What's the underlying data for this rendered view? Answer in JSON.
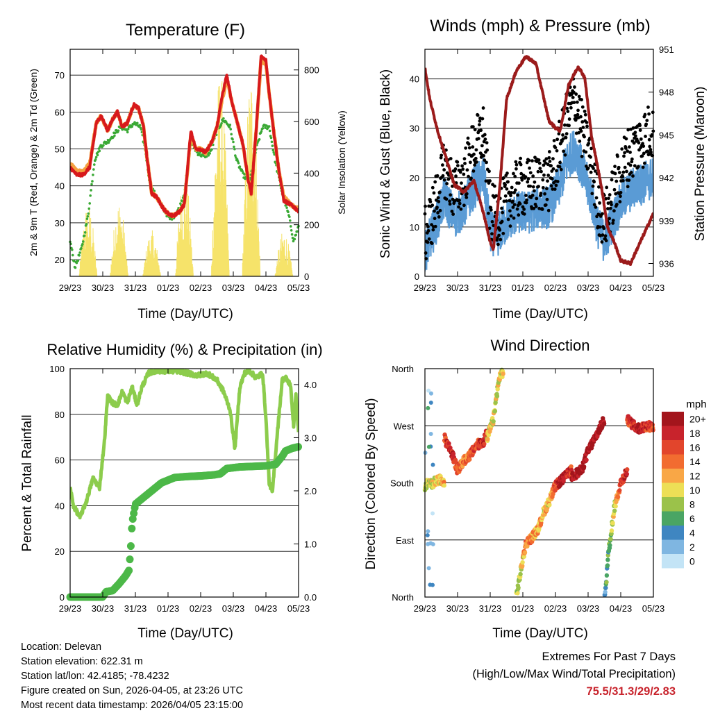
{
  "colors": {
    "temp_2m": "#d7191c",
    "temp_9m": "#f4a040",
    "dewpoint": "#3aa935",
    "solar": "#f6e36a",
    "wind": "#5a9bd5",
    "gust": "#000000",
    "pressure": "#9b1b1b",
    "rh": "#8ccc4c",
    "precip": "#4cb848",
    "extremes": "#c8232c"
  },
  "x_tick_labels": [
    "29/23",
    "30/23",
    "31/23",
    "01/23",
    "02/23",
    "03/23",
    "04/23",
    "05/23"
  ],
  "chart_data": [
    {
      "id": "temperature",
      "type": "line",
      "title": "Temperature (F)",
      "xlabel": "Time (Day/UTC)",
      "ylabel_left": "2m & 9m T (Red, Orange) & 2m Td (Green)",
      "ylabel_right": "Solar Insolation (Yellow)",
      "ylim_left": [
        15.5,
        77
      ],
      "yticks_left": [
        20,
        30,
        40,
        50,
        60,
        70
      ],
      "ylim_right": [
        0,
        880
      ],
      "yticks_right": [
        0,
        200,
        400,
        600,
        800
      ],
      "x_days": [
        0,
        7
      ],
      "series": [
        {
          "name": "2m T",
          "axis": "left",
          "x": [
            0,
            0.2,
            0.4,
            0.6,
            0.8,
            0.95,
            1.15,
            1.3,
            1.45,
            1.6,
            1.75,
            1.95,
            2.1,
            2.25,
            2.35,
            2.5,
            2.65,
            2.85,
            3.05,
            3.2,
            3.35,
            3.5,
            3.7,
            3.85,
            4.0,
            4.15,
            4.35,
            4.5,
            4.65,
            4.8,
            4.95,
            5.1,
            5.3,
            5.45,
            5.55,
            5.7,
            5.85,
            6.0,
            6.1,
            6.25,
            6.4,
            6.55,
            6.75,
            6.9,
            7.0
          ],
          "y": [
            45,
            43,
            43,
            45,
            57,
            59,
            55,
            58,
            60,
            56,
            57,
            62,
            61,
            56,
            48,
            38,
            37,
            34,
            32,
            32,
            33,
            35,
            55,
            50,
            50,
            49,
            52,
            56,
            64,
            70,
            63,
            58,
            51,
            42,
            38,
            55,
            75,
            74,
            65,
            54,
            44,
            36,
            35,
            34,
            33
          ]
        },
        {
          "name": "9m T",
          "axis": "left",
          "x": [
            0,
            0.2,
            0.4,
            0.6,
            0.8,
            0.95,
            1.15,
            1.3,
            1.45,
            1.6,
            1.75,
            1.95,
            2.1,
            2.25,
            2.35,
            2.5,
            2.65,
            2.85,
            3.05,
            3.2,
            3.35,
            3.5,
            3.7,
            3.85,
            4.0,
            4.15,
            4.35,
            4.5,
            4.65,
            4.8,
            4.95,
            5.1,
            5.3,
            5.45,
            5.55,
            5.7,
            5.85,
            6.0,
            6.1,
            6.25,
            6.4,
            6.55,
            6.75,
            6.9,
            7.0
          ],
          "y": [
            46,
            44,
            44,
            46,
            57,
            59,
            55,
            58,
            60,
            56,
            57,
            62,
            61,
            56,
            48,
            38,
            37,
            34,
            32,
            32,
            33,
            35,
            54,
            50,
            50,
            49,
            52,
            56,
            63,
            69,
            63,
            58,
            51,
            42,
            38,
            55,
            74,
            73,
            65,
            54,
            44,
            37,
            35,
            34,
            34
          ]
        },
        {
          "name": "2m Td",
          "axis": "left",
          "x": [
            0,
            0.15,
            0.35,
            0.55,
            0.75,
            0.95,
            1.15,
            1.35,
            1.55,
            1.75,
            1.95,
            2.15,
            2.3,
            2.45,
            2.65,
            2.85,
            3.05,
            3.2,
            3.35,
            3.5,
            3.7,
            3.9,
            4.1,
            4.3,
            4.5,
            4.7,
            4.9,
            5.1,
            5.3,
            5.5,
            5.7,
            5.9,
            6.1,
            6.3,
            6.5,
            6.7,
            6.85,
            7.0
          ],
          "y": [
            25,
            18,
            23,
            32,
            47,
            51,
            52,
            54,
            56,
            55,
            57,
            56,
            50,
            40,
            37,
            34,
            31,
            32,
            34,
            38,
            52,
            49,
            48,
            49,
            55,
            58,
            56,
            47,
            43,
            41,
            50,
            56,
            56,
            46,
            38,
            32,
            25,
            29
          ]
        },
        {
          "name": "Solar Insolation",
          "axis": "right",
          "type": "spiky",
          "day_peaks": [
            {
              "center": 0.55,
              "peak": 290
            },
            {
              "center": 1.5,
              "peak": 300
            },
            {
              "center": 2.5,
              "peak": 180
            },
            {
              "center": 3.5,
              "peak": 420
            },
            {
              "center": 4.6,
              "peak": 810
            },
            {
              "center": 5.55,
              "peak": 820
            },
            {
              "center": 6.55,
              "peak": 180
            }
          ]
        }
      ]
    },
    {
      "id": "winds",
      "type": "scatter",
      "title": "Winds (mph) & Pressure (mb)",
      "xlabel": "Time (Day/UTC)",
      "ylabel_left": "Sonic Wind & Gust (Blue, Black)",
      "ylabel_right": "Station Pressure (Maroon)",
      "ylim_left": [
        0,
        46
      ],
      "yticks_left": [
        0,
        10,
        20,
        30,
        40
      ],
      "ylim_right": [
        935.1,
        951.0
      ],
      "yticks_right": [
        936,
        939,
        942,
        945,
        948,
        951
      ],
      "series": [
        {
          "name": "Sonic Wind",
          "axis": "left",
          "x": [
            0,
            0.3,
            0.6,
            0.9,
            1.2,
            1.5,
            1.8,
            2.0,
            2.2,
            2.4,
            2.6,
            2.9,
            3.2,
            3.5,
            3.8,
            4.1,
            4.4,
            4.6,
            4.8,
            5.1,
            5.3,
            5.5,
            5.8,
            6.1,
            6.4,
            6.7,
            7.0
          ],
          "y": [
            5,
            10,
            16,
            12,
            14,
            18,
            20,
            9,
            8,
            10,
            12,
            13,
            13,
            14,
            14,
            18,
            24,
            26,
            22,
            16,
            10,
            7,
            12,
            16,
            18,
            19,
            20
          ]
        },
        {
          "name": "Gust",
          "axis": "left",
          "x": [
            0,
            0.3,
            0.6,
            0.9,
            1.2,
            1.5,
            1.8,
            2.0,
            2.2,
            2.4,
            2.6,
            2.9,
            3.2,
            3.5,
            3.8,
            4.1,
            4.4,
            4.6,
            4.8,
            5.1,
            5.3,
            5.5,
            5.8,
            6.1,
            6.4,
            6.7,
            7.0
          ],
          "y": [
            8,
            14,
            22,
            17,
            20,
            26,
            29,
            13,
            12,
            14,
            16,
            18,
            18,
            19,
            19,
            25,
            33,
            36,
            30,
            23,
            15,
            11,
            17,
            23,
            26,
            28,
            30
          ]
        },
        {
          "name": "Station Pressure",
          "axis": "right",
          "x": [
            0,
            0.15,
            0.4,
            0.7,
            0.9,
            1.2,
            1.5,
            1.8,
            2.0,
            2.1,
            2.3,
            2.5,
            2.8,
            3.1,
            3.4,
            3.6,
            3.8,
            4.0,
            4.15,
            4.4,
            4.7,
            4.9,
            5.1,
            5.4,
            5.6,
            5.8,
            6.0,
            6.3,
            6.5,
            6.7,
            6.9,
            7.0
          ],
          "y": [
            949.7,
            947.5,
            945.2,
            943.0,
            941.5,
            941.0,
            941.8,
            939.5,
            937.5,
            937.0,
            941.5,
            947.5,
            949.5,
            950.5,
            950.0,
            948.0,
            946.0,
            945.5,
            945.3,
            948.5,
            949.8,
            949.0,
            945.0,
            941.5,
            938.5,
            937.5,
            936.2,
            936.0,
            937.0,
            938.0,
            939.0,
            939.5
          ]
        }
      ]
    },
    {
      "id": "humidity",
      "type": "line",
      "title": "Relative Humidity (%) & Precipitation (in)",
      "xlabel": "Time (Day/UTC)",
      "ylabel_left": "Percent & Total Rainfall",
      "ylim_left": [
        0,
        100
      ],
      "yticks_left": [
        0,
        20,
        40,
        60,
        80,
        100
      ],
      "ylim_right": [
        0.0,
        4.3
      ],
      "yticks_right": [
        "0.0",
        "1.0",
        "2.0",
        "3.0",
        "4.0"
      ],
      "series": [
        {
          "name": "Relative Humidity",
          "axis": "left",
          "x": [
            0,
            0.1,
            0.3,
            0.5,
            0.7,
            0.9,
            1.05,
            1.15,
            1.3,
            1.45,
            1.6,
            1.75,
            1.9,
            2.05,
            2.2,
            2.4,
            2.6,
            2.8,
            3.0,
            3.3,
            3.6,
            3.9,
            4.2,
            4.5,
            4.7,
            4.9,
            5.05,
            5.2,
            5.35,
            5.5,
            5.7,
            5.9,
            6.0,
            6.1,
            6.2,
            6.35,
            6.5,
            6.6,
            6.75,
            6.85,
            6.92,
            7.0
          ],
          "y": [
            48,
            40,
            35,
            42,
            52,
            48,
            68,
            88,
            85,
            84,
            90,
            85,
            92,
            84,
            92,
            98,
            99,
            99,
            99,
            99,
            98,
            97,
            98,
            95,
            90,
            82,
            65,
            92,
            98,
            99,
            96,
            98,
            78,
            50,
            46,
            72,
            95,
            96,
            93,
            75,
            88,
            72
          ]
        },
        {
          "name": "Total Precipitation",
          "axis": "right",
          "x": [
            0,
            0.5,
            1.0,
            1.1,
            1.3,
            1.5,
            1.7,
            1.8,
            1.85,
            1.9,
            2.0,
            2.2,
            2.5,
            2.8,
            3.2,
            3.6,
            4.0,
            4.4,
            4.6,
            4.8,
            5.2,
            5.6,
            6.0,
            6.3,
            6.5,
            6.6,
            6.8,
            7.0
          ],
          "y": [
            0.0,
            0.0,
            0.0,
            0.1,
            0.12,
            0.25,
            0.4,
            0.5,
            0.85,
            1.4,
            1.75,
            1.85,
            2.0,
            2.15,
            2.25,
            2.27,
            2.28,
            2.3,
            2.32,
            2.42,
            2.45,
            2.46,
            2.47,
            2.5,
            2.65,
            2.75,
            2.8,
            2.83
          ]
        }
      ]
    },
    {
      "id": "wind_direction",
      "type": "scatter",
      "title": "Wind Direction",
      "xlabel": "Time (Day/UTC)",
      "ylabel_left": "Direction (Colored By Speed)",
      "ylim_left": [
        0,
        360
      ],
      "yticks_left": [
        {
          "value": 0,
          "label": "North"
        },
        {
          "value": 90,
          "label": "East"
        },
        {
          "value": 180,
          "label": "South"
        },
        {
          "value": 270,
          "label": "West"
        },
        {
          "value": 360,
          "label": "North"
        }
      ],
      "segments": [
        {
          "x": [
            0.0,
            0.1,
            0.2,
            0.4,
            0.6
          ],
          "dir": [
            175,
            180,
            178,
            185,
            182
          ],
          "speed": [
            8,
            9,
            10,
            10,
            11
          ]
        },
        {
          "x": [
            0.6,
            0.8,
            1.0,
            1.2,
            1.4,
            1.6,
            1.8,
            1.9
          ],
          "dir": [
            250,
            230,
            200,
            215,
            225,
            240,
            245,
            260
          ],
          "speed": [
            16,
            18,
            16,
            14,
            15,
            16,
            18,
            17
          ]
        },
        {
          "x": [
            1.9,
            2.1,
            2.2,
            2.3,
            2.4
          ],
          "dir": [
            250,
            280,
            320,
            350,
            355
          ],
          "speed": [
            10,
            10,
            9,
            10,
            9
          ]
        },
        {
          "x": [
            2.8,
            2.9,
            3.0,
            3.1,
            3.3,
            3.5,
            3.6,
            3.8,
            4.0,
            4.2,
            4.4,
            4.5
          ],
          "dir": [
            0,
            30,
            60,
            85,
            95,
            110,
            130,
            150,
            175,
            185,
            195,
            200
          ],
          "speed": [
            8,
            9,
            11,
            14,
            13,
            12,
            11,
            11,
            16,
            20,
            18,
            16
          ]
        },
        {
          "x": [
            4.5,
            4.8,
            5.0,
            5.3,
            5.5
          ],
          "dir": [
            190,
            200,
            230,
            260,
            280
          ],
          "speed": [
            20,
            20,
            20,
            20,
            20
          ]
        },
        {
          "x": [
            5.5,
            5.55,
            5.6,
            5.7,
            5.8,
            6.0,
            6.2
          ],
          "dir": [
            0,
            15,
            60,
            100,
            140,
            180,
            200
          ],
          "speed": [
            4,
            5,
            7,
            9,
            10,
            16,
            18
          ]
        },
        {
          "x": [
            6.2,
            6.4,
            6.6,
            6.8,
            7.0
          ],
          "dir": [
            280,
            270,
            265,
            270,
            268
          ],
          "speed": [
            16,
            18,
            20,
            17,
            16
          ]
        }
      ],
      "legend": {
        "title": "mph",
        "labels": [
          "20+",
          "18",
          "16",
          "14",
          "12",
          "10",
          "8",
          "6",
          "4",
          "2",
          "0"
        ],
        "colors": [
          "#a3151c",
          "#c8232c",
          "#e2452c",
          "#f26c30",
          "#f9a746",
          "#eddf56",
          "#9bc24a",
          "#4aa564",
          "#3f86c1",
          "#7fb6e1",
          "#c3e4f6"
        ]
      }
    }
  ],
  "info": {
    "location": "Location: Delevan",
    "elevation": "Station elevation: 622.31 m",
    "latlon": "Station lat/lon: 42.4185; -78.4232",
    "created": "Figure created on Sun, 2026-04-05, at 23:26 UTC",
    "recent": "Most recent data timestamp: 2026/04/05 23:15:00"
  },
  "extremes": {
    "title": "Extremes For Past 7 Days",
    "subtitle": "(High/Low/Max Wind/Total Precipitation)",
    "values": "75.5/31.3/29/2.83"
  }
}
